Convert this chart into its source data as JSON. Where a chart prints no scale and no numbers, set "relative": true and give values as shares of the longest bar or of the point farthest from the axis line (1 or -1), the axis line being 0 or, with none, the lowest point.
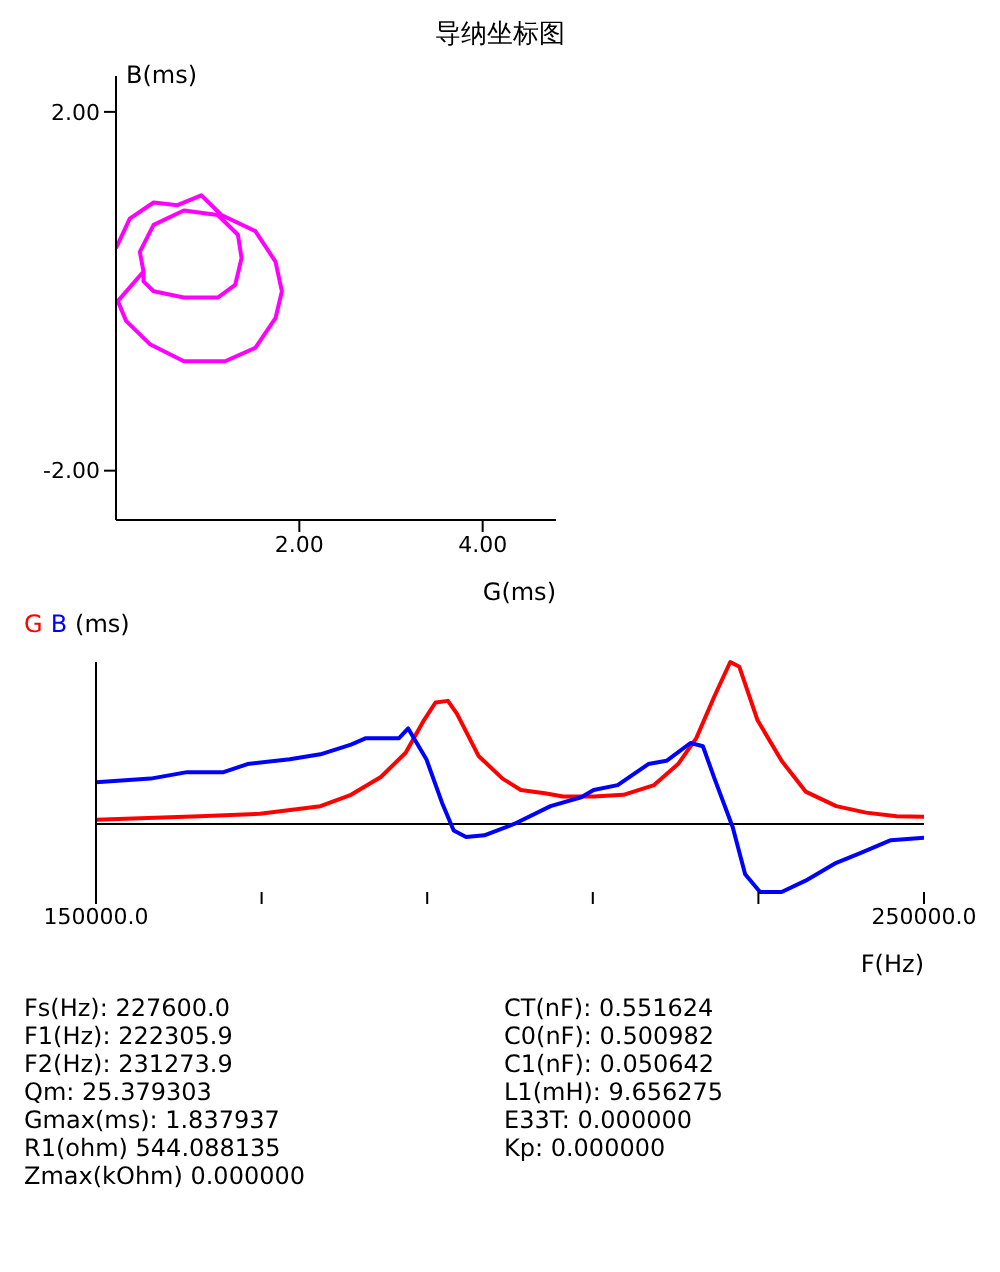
{
  "chart_data": [
    {
      "type": "line",
      "title": "导纳坐标图",
      "xlabel": "G(ms)",
      "ylabel": "B(ms)",
      "x": [
        0,
        0.15,
        0.41,
        0.67,
        0.93,
        1.15,
        1.52,
        1.74,
        1.81,
        1.74,
        1.52,
        1.19,
        0.74,
        0.37,
        0.11,
        0.02,
        0.3,
        0.26,
        0.41,
        0.74,
        1.11,
        1.33,
        1.37,
        1.3,
        1.11,
        0.74,
        0.41,
        0.3,
        0.3
      ],
      "series": [
        {
          "color": "#ff00ff",
          "values": [
            0.48,
            0.81,
            0.99,
            0.96,
            1.07,
            0.85,
            0.67,
            0.33,
            0,
            -0.3,
            -0.63,
            -0.78,
            -0.78,
            -0.59,
            -0.33,
            -0.11,
            0.22,
            0.44,
            0.74,
            0.9,
            0.85,
            0.63,
            0.37,
            0.07,
            -0.07,
            -0.07,
            0,
            0.11,
            0.22
          ]
        }
      ],
      "xlim": [
        0,
        4.8
      ],
      "ylim": [
        -2.55,
        2.4
      ],
      "xticks": [
        {
          "value": 2,
          "label": "2.00"
        },
        {
          "value": 4,
          "label": "4.00"
        }
      ],
      "yticks": [
        {
          "value": -2,
          "label": "-2.00"
        },
        {
          "value": 2,
          "label": "2.00"
        }
      ],
      "marker": "none",
      "grid": false,
      "legend": false
    },
    {
      "type": "line",
      "ylabel": "(ms)",
      "xlabel": "F(Hz)",
      "relative": true,
      "legend": "top left",
      "marker": "none",
      "grid": false,
      "xlim": [
        150000,
        250000
      ],
      "xticks": [
        {
          "value": 150000,
          "label": "150000.0"
        },
        {
          "value": 170000,
          "label": null
        },
        {
          "value": 190000,
          "label": null
        },
        {
          "value": 210000,
          "label": null
        },
        {
          "value": 230000,
          "label": null
        },
        {
          "value": 250000,
          "label": "250000.0"
        }
      ],
      "series": [
        {
          "name": "G",
          "color": "#ff0000",
          "x": [
            150000,
            162500,
            169800,
            177100,
            180800,
            184400,
            187400,
            189600,
            191000,
            192500,
            193600,
            196200,
            199100,
            201300,
            204200,
            206400,
            210100,
            213700,
            217400,
            220300,
            222500,
            224700,
            226600,
            227700,
            229900,
            232800,
            235700,
            239400,
            243000,
            246700,
            250000
          ],
          "values": [
            0.026,
            0.048,
            0.063,
            0.11,
            0.18,
            0.29,
            0.44,
            0.64,
            0.75,
            0.76,
            0.68,
            0.42,
            0.28,
            0.21,
            0.19,
            0.17,
            0.17,
            0.18,
            0.24,
            0.37,
            0.53,
            0.79,
            1,
            0.97,
            0.64,
            0.39,
            0.2,
            0.11,
            0.07,
            0.048,
            0.044
          ]
        },
        {
          "name": "B",
          "color": "#0000ff",
          "x": [
            150000,
            156600,
            161000,
            165400,
            168300,
            173400,
            177100,
            180800,
            182600,
            183700,
            186600,
            187700,
            189900,
            191800,
            193200,
            194700,
            196900,
            200500,
            204900,
            208600,
            210100,
            213000,
            216700,
            218900,
            221800,
            223300,
            224700,
            226900,
            228400,
            230200,
            232800,
            235700,
            239400,
            242300,
            246000,
            250000
          ],
          "values": [
            0.257,
            0.28,
            0.32,
            0.32,
            0.37,
            0.4,
            0.43,
            0.49,
            0.53,
            0.53,
            0.53,
            0.59,
            0.4,
            0.13,
            -0.04,
            -0.08,
            -0.07,
            0,
            0.11,
            0.165,
            0.21,
            0.24,
            0.37,
            0.39,
            0.5,
            0.48,
            0.28,
            -0.02,
            -0.31,
            -0.42,
            -0.42,
            -0.35,
            -0.24,
            -0.18,
            -0.1,
            -0.085
          ]
        }
      ],
      "annotations": [
        "Fs(Hz): 227600.0",
        "CT(nF): 0.551624",
        "F1(Hz): 222305.9",
        "C0(nF): 0.500982",
        "F2(Hz): 231273.9",
        "C1(nF): 0.050642",
        "Qm: 25.379303",
        "L1(mH): 9.656275",
        "Gmax(ms): 1.837937",
        "E33T: 0.000000",
        "R1(ohm) 544.088135",
        "Kp: 0.000000",
        "Zmax(kOhm) 0.000000"
      ]
    }
  ]
}
